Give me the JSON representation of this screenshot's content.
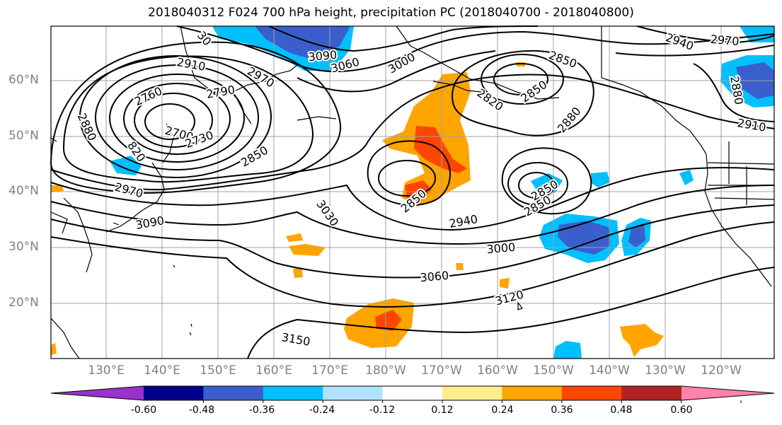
{
  "title": "2018040312 F024 700 hPa height, precipitation PC (2018040700 - 2018040800)",
  "lat_labels": [
    "60°N",
    "50°N",
    "40°N",
    "30°N",
    "20°N"
  ],
  "lon_labels": [
    "130°E",
    "140°E",
    "150°E",
    "160°E",
    "170°E",
    "180°W",
    "170°W",
    "160°W",
    "150°W",
    "140°W",
    "130°W",
    "120°W"
  ],
  "colorbar": {
    "colors": [
      "#9932cc",
      "#00008b",
      "#3a5fcd",
      "#00bfff",
      "#b0e2ff",
      "#ffffff",
      "#ffec8b",
      "#ffa500",
      "#ff4500",
      "#b22222",
      "#ff82ab"
    ],
    "tick_labels": [
      "-0.60",
      "-0.48",
      "-0.36",
      "-0.24",
      "-0.12",
      "0.12",
      "0.24",
      "0.36",
      "0.48",
      "0.60"
    ]
  },
  "contour_labels": [
    {
      "text": "30"
    },
    {
      "text": "3090"
    },
    {
      "text": "3060"
    },
    {
      "text": "3000"
    },
    {
      "text": "2850"
    },
    {
      "text": "2940"
    },
    {
      "text": "2970"
    },
    {
      "text": "2910"
    },
    {
      "text": "2760"
    },
    {
      "text": "2790"
    },
    {
      "text": "2970"
    },
    {
      "text": "2820"
    },
    {
      "text": "2850"
    },
    {
      "text": "2880"
    },
    {
      "text": "2880"
    },
    {
      "text": "2700"
    },
    {
      "text": "2730"
    },
    {
      "text": "820"
    },
    {
      "text": "2850"
    },
    {
      "text": "2910"
    },
    {
      "text": "2880"
    },
    {
      "text": "2970"
    },
    {
      "text": "3090"
    },
    {
      "text": "3030"
    },
    {
      "text": "2850"
    },
    {
      "text": "2850"
    },
    {
      "text": "2850"
    },
    {
      "text": "2940"
    },
    {
      "text": "3000"
    },
    {
      "text": "3060"
    },
    {
      "text": "3120"
    },
    {
      "text": "3150"
    }
  ]
}
